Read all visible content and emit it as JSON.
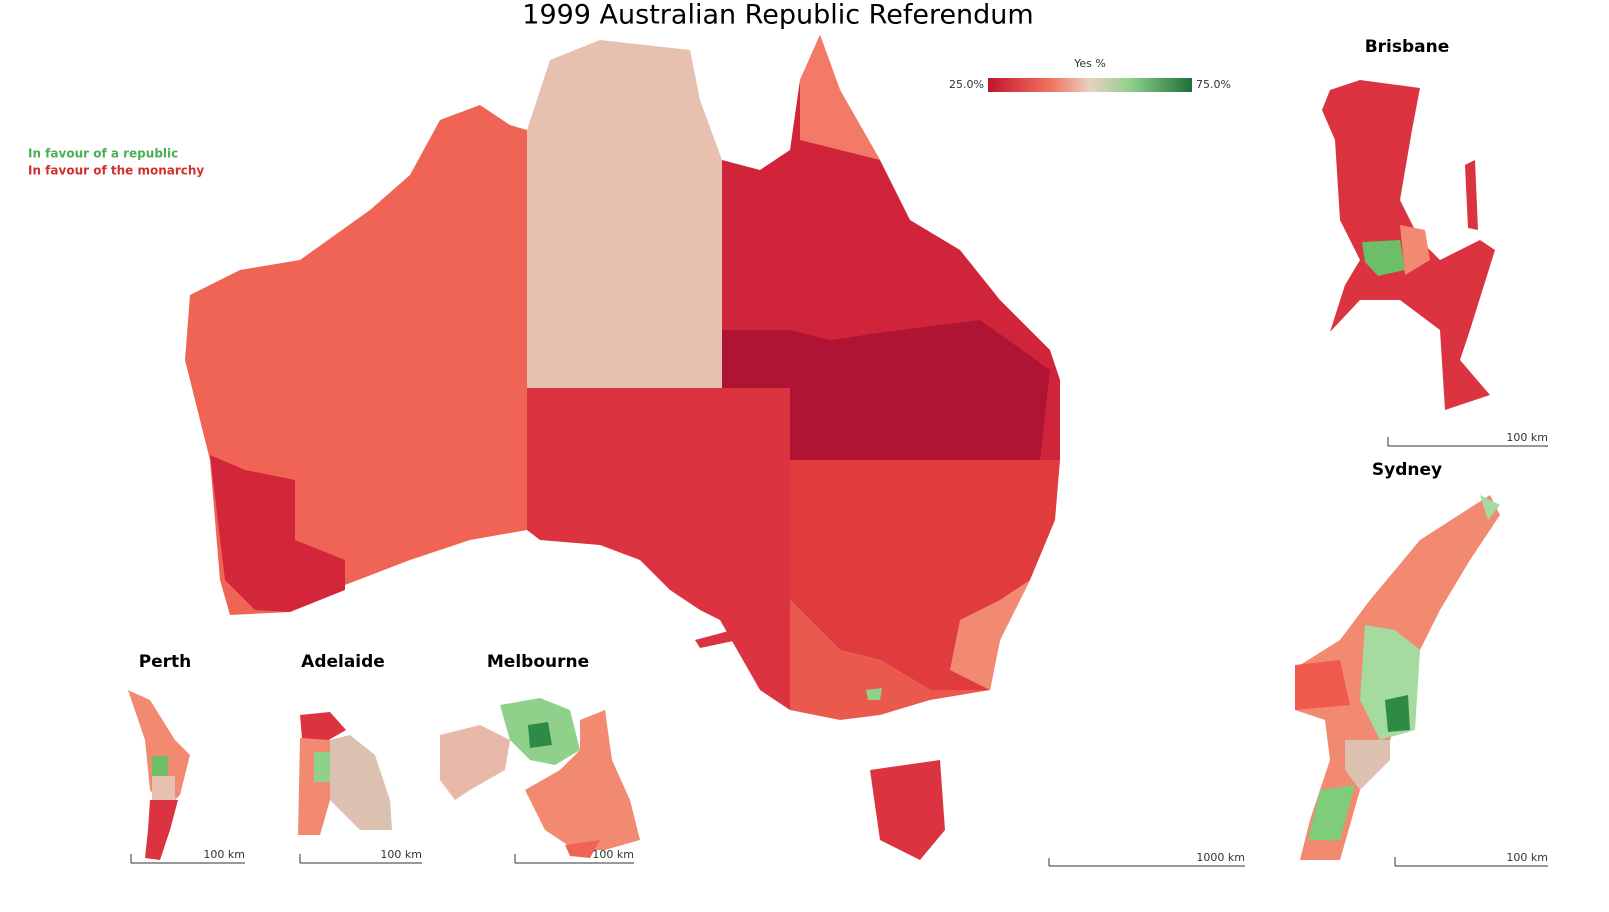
{
  "title": "1999 Australian Republic Referendum",
  "legend": {
    "title": "Yes %",
    "min_label": "25.0%",
    "max_label": "75.0%"
  },
  "key": {
    "republic": "In favour of a republic",
    "monarchy": "In favour of the monarchy"
  },
  "main_scale": "1000 km",
  "insets": [
    {
      "label": "Brisbane",
      "scale": "100 km"
    },
    {
      "label": "Sydney",
      "scale": "100 km"
    },
    {
      "label": "Perth",
      "scale": "100 km"
    },
    {
      "label": "Adelaide",
      "scale": "100 km"
    },
    {
      "label": "Melbourne",
      "scale": "100 km"
    }
  ]
}
